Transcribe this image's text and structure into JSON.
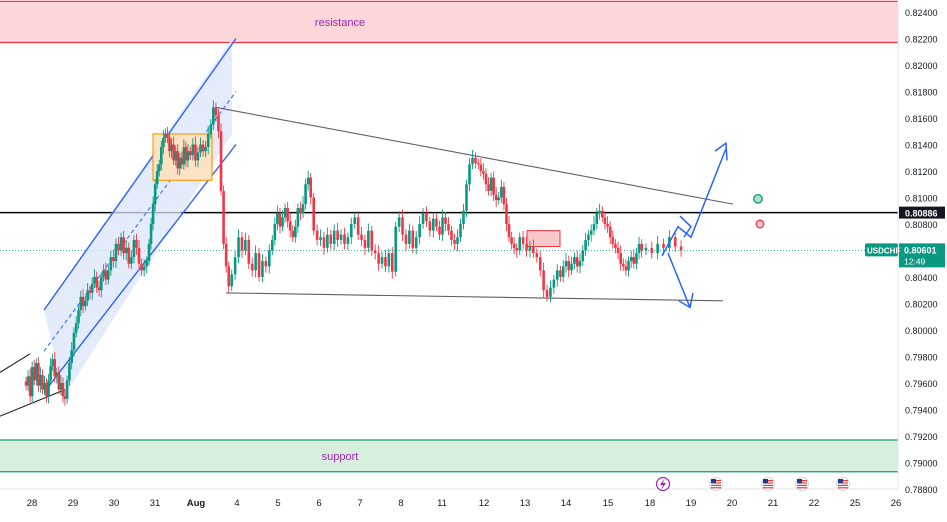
{
  "chart_data": {
    "type": "candlestick",
    "symbol": "USDCHF",
    "current_price": "0.80601",
    "countdown": "12:49",
    "horizontal_level": "0.80886",
    "ylim": [
      0.7875,
      0.825
    ],
    "y_ticks": [
      "0.82400",
      "0.82200",
      "0.82000",
      "0.81800",
      "0.81600",
      "0.81400",
      "0.81200",
      "0.81000",
      "0.80800",
      "0.80600",
      "0.80400",
      "0.80200",
      "0.80000",
      "0.79800",
      "0.79600",
      "0.79400",
      "0.79200",
      "0.79000",
      "0.78800"
    ],
    "x_ticks": [
      "28",
      "29",
      "30",
      "31",
      "Aug",
      "4",
      "5",
      "6",
      "7",
      "8",
      "11",
      "12",
      "13",
      "14",
      "15",
      "18",
      "19",
      "20",
      "21",
      "22",
      "25",
      "26"
    ],
    "zones": [
      {
        "label": "resistance",
        "low": 0.8217,
        "high": 0.8248,
        "color": "#f23645"
      },
      {
        "label": "support",
        "low": 0.7893,
        "high": 0.7917,
        "color": "#089981"
      }
    ],
    "price_path": [
      {
        "d": "28",
        "v": [
          0.7958,
          0.7965,
          0.795,
          0.7972,
          0.7962,
          0.7975,
          0.7958,
          0.7966,
          0.7955,
          0.796,
          0.795,
          0.7962,
          0.7973,
          0.7978,
          0.7965,
          0.7968,
          0.7955,
          0.796,
          0.795,
          0.7948
        ]
      },
      {
        "d": "29",
        "v": [
          0.7962,
          0.7975,
          0.7985,
          0.7998,
          0.8005,
          0.8015,
          0.8025,
          0.8018,
          0.8022,
          0.803,
          0.8028,
          0.8035,
          0.804,
          0.8032,
          0.803,
          0.804,
          0.8045,
          0.8038
        ]
      },
      {
        "d": "30",
        "v": [
          0.8045,
          0.8055,
          0.8052,
          0.8065,
          0.806,
          0.807,
          0.8058,
          0.8062,
          0.805,
          0.8055,
          0.8068,
          0.8062,
          0.805,
          0.8045,
          0.8048,
          0.8052
        ]
      },
      {
        "d": "31",
        "v": [
          0.8065,
          0.808,
          0.8095,
          0.811,
          0.812,
          0.8125,
          0.8138,
          0.8145,
          0.8148,
          0.8145,
          0.8135,
          0.814,
          0.8128,
          0.8135,
          0.8122,
          0.813,
          0.8125,
          0.8138,
          0.8128,
          0.8135
        ]
      },
      {
        "d": "Aug",
        "v": [
          0.8132,
          0.814,
          0.8128,
          0.8134,
          0.814,
          0.8135,
          0.8138,
          0.8148,
          0.8155,
          0.8168,
          0.8162,
          0.815,
          0.8105,
          0.8065,
          0.8048,
          0.8033
        ]
      },
      {
        "d": "4",
        "v": [
          0.8042,
          0.8055,
          0.807,
          0.806,
          0.8068,
          0.805,
          0.8045,
          0.8058,
          0.804,
          0.8052,
          0.8048,
          0.806
        ]
      },
      {
        "d": "5",
        "v": [
          0.8068,
          0.808,
          0.8088,
          0.8078,
          0.8085,
          0.8092,
          0.8082,
          0.8075,
          0.807,
          0.8078,
          0.8092,
          0.8088,
          0.8095,
          0.811,
          0.8115,
          0.81
        ]
      },
      {
        "d": "6",
        "v": [
          0.8075,
          0.8068,
          0.807,
          0.8062,
          0.8072,
          0.8065,
          0.8075,
          0.8068,
          0.8072,
          0.8065,
          0.807,
          0.808
        ]
      },
      {
        "d": "7",
        "v": [
          0.8085,
          0.8072,
          0.8068,
          0.8062,
          0.8075,
          0.806,
          0.8058,
          0.805,
          0.8055,
          0.8048,
          0.8058,
          0.8044
        ]
      },
      {
        "d": "8",
        "v": [
          0.8078,
          0.8085,
          0.8072,
          0.8065,
          0.8075,
          0.8062,
          0.807,
          0.808,
          0.8088,
          0.8082,
          0.8075,
          0.8084
        ]
      },
      {
        "d": "11",
        "v": [
          0.8078,
          0.8072,
          0.8085,
          0.808,
          0.8075,
          0.8068,
          0.8065,
          0.807,
          0.808,
          0.809,
          0.811,
          0.8125,
          0.813,
          0.8126
        ]
      },
      {
        "d": "12",
        "v": [
          0.8125,
          0.812,
          0.8118,
          0.811,
          0.8105,
          0.8115,
          0.8102,
          0.8098,
          0.81,
          0.8108,
          0.8095,
          0.808,
          0.807,
          0.8065,
          0.8062,
          0.806
        ]
      },
      {
        "d": "13",
        "v": [
          0.807,
          0.8065,
          0.806,
          0.8063,
          0.8058,
          0.8055,
          0.8045,
          0.803,
          0.8025,
          0.8032,
          0.8038,
          0.8045
        ]
      },
      {
        "d": "14",
        "v": [
          0.804,
          0.8048,
          0.8052,
          0.8045,
          0.805,
          0.8055,
          0.8048,
          0.8052,
          0.806,
          0.8068,
          0.8072,
          0.8075,
          0.808,
          0.8088,
          0.809
        ]
      },
      {
        "d": "15",
        "v": [
          0.8085,
          0.808,
          0.8078,
          0.807,
          0.8065,
          0.8062,
          0.8058,
          0.805,
          0.8048,
          0.8045,
          0.8052,
          0.8055,
          0.805,
          0.8058,
          0.8065,
          0.806
        ]
      },
      {
        "d": "18",
        "v": [
          0.8062,
          0.8058,
          0.8065,
          0.8062,
          0.807,
          0.8063,
          0.806
        ]
      }
    ],
    "annotations": [
      {
        "type": "channel",
        "from_day": "28",
        "to_day": "Aug",
        "color": "#2962ff"
      },
      {
        "type": "consolidation-box",
        "days": [
          "31",
          "Aug"
        ],
        "low": 0.8123,
        "high": 0.8148,
        "color": "#ff9800"
      },
      {
        "type": "box",
        "day": "13",
        "low": 0.8063,
        "high": 0.8075,
        "color": "#f23645"
      },
      {
        "type": "triangle-line",
        "from_day": "Aug",
        "from": 0.8168,
        "to_day": "20",
        "to": 0.8095
      },
      {
        "type": "triangle-line",
        "from_day": "Aug",
        "from": 0.8028,
        "to_day": "19",
        "to": 0.8022
      },
      {
        "type": "arrow-up",
        "color": "#2962ff"
      },
      {
        "type": "arrow-down",
        "color": "#2962ff"
      },
      {
        "type": "marker",
        "color": "#089981"
      },
      {
        "type": "marker",
        "color": "#f23645"
      }
    ]
  },
  "colors": {
    "up": "#089981",
    "down": "#f23645",
    "blue": "#2962ff",
    "orange": "#ff9800",
    "zone_text": "#9c27b0",
    "level_line": "#000000",
    "price_badge": "#089981"
  }
}
